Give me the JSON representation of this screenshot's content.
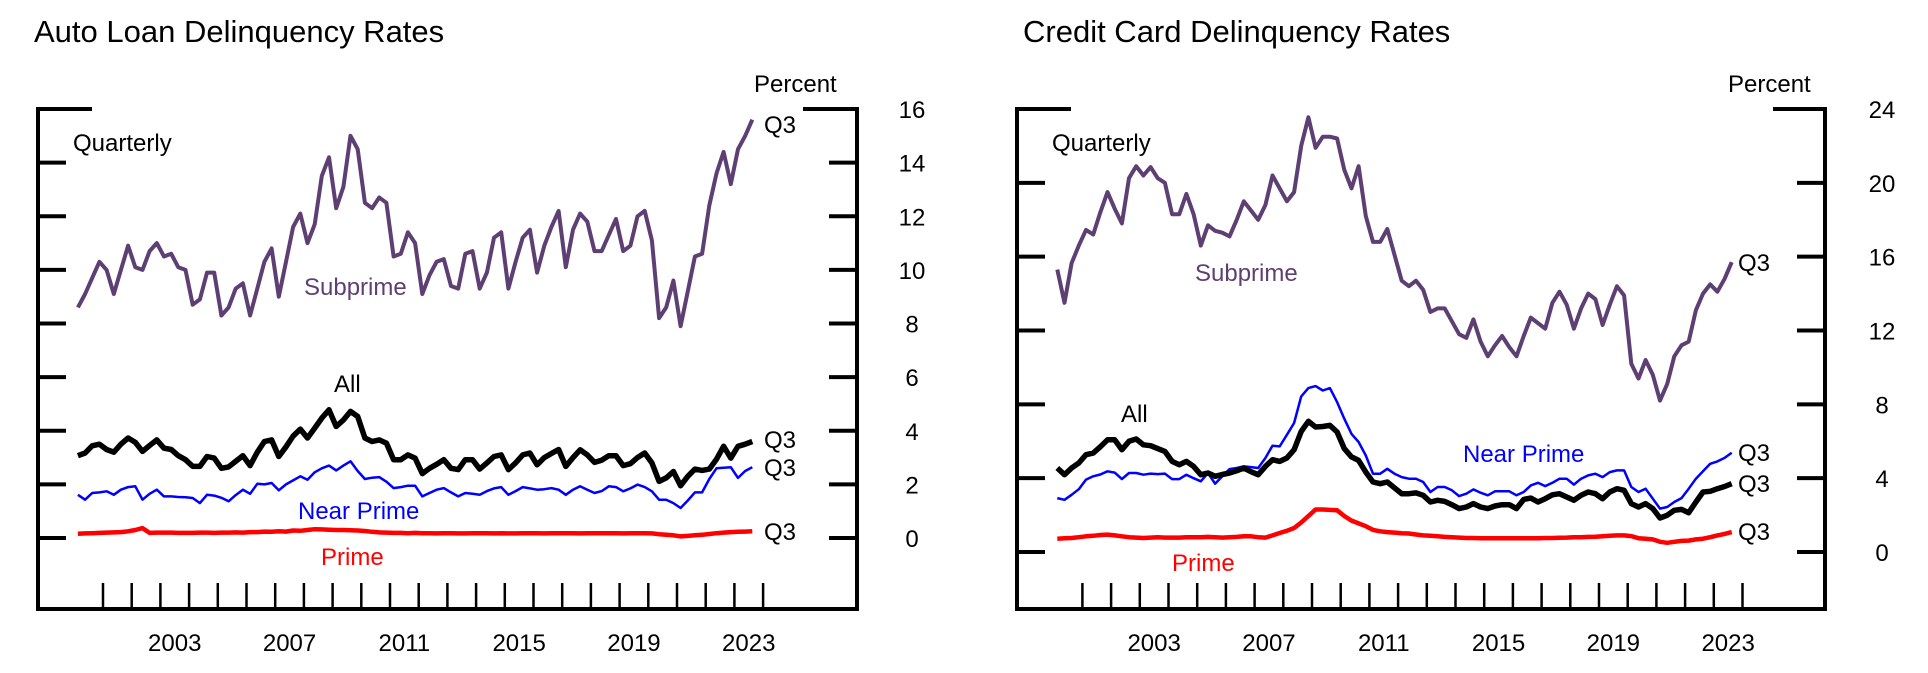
{
  "chart_data": [
    {
      "type": "line",
      "title": "Auto Loan Delinquency Rates",
      "ylabel": "Percent",
      "frequency_note": "Quarterly",
      "ylim": [
        -2.6,
        16
      ],
      "yticks": [
        0,
        2,
        4,
        6,
        8,
        10,
        12,
        14,
        16
      ],
      "xlim": [
        2000,
        2024
      ],
      "xtick_labels": [
        "2003",
        "2007",
        "2011",
        "2015",
        "2019",
        "2023"
      ],
      "start_quarter": "2000Q1",
      "series": [
        {
          "name": "Subprime",
          "color": "#5e3f73",
          "end_label": "Q3",
          "values": [
            8.6,
            9.1,
            9.7,
            10.3,
            10.0,
            9.1,
            10.0,
            10.9,
            10.1,
            10.0,
            10.7,
            11.0,
            10.5,
            10.6,
            10.1,
            10.0,
            8.7,
            8.9,
            9.9,
            9.9,
            8.3,
            8.6,
            9.3,
            9.5,
            8.3,
            9.3,
            10.3,
            10.8,
            9.0,
            10.3,
            11.6,
            12.1,
            11.0,
            11.7,
            13.5,
            14.2,
            12.3,
            13.1,
            15.0,
            14.5,
            12.5,
            12.3,
            12.7,
            12.5,
            10.5,
            10.6,
            11.4,
            11.0,
            9.1,
            9.8,
            10.3,
            10.4,
            9.4,
            9.3,
            10.6,
            10.7,
            9.3,
            9.9,
            11.2,
            11.4,
            9.3,
            10.3,
            11.2,
            11.5,
            9.9,
            10.9,
            11.6,
            12.2,
            10.1,
            11.5,
            12.1,
            11.8,
            10.7,
            10.7,
            11.3,
            11.9,
            10.7,
            10.9,
            12.0,
            12.2,
            11.1,
            8.2,
            8.6,
            9.6,
            7.9,
            9.2,
            10.5,
            10.6,
            12.4,
            13.6,
            14.4,
            13.2,
            14.5,
            15.0,
            15.6
          ]
        },
        {
          "name": "All",
          "color": "#000000",
          "end_label": "Q3",
          "values": [
            3.07,
            3.17,
            3.44,
            3.5,
            3.3,
            3.2,
            3.5,
            3.73,
            3.57,
            3.23,
            3.45,
            3.66,
            3.35,
            3.3,
            3.07,
            2.92,
            2.67,
            2.67,
            3.04,
            2.98,
            2.6,
            2.65,
            2.86,
            3.07,
            2.7,
            3.2,
            3.6,
            3.66,
            3.04,
            3.4,
            3.8,
            4.06,
            3.73,
            4.1,
            4.47,
            4.78,
            4.16,
            4.4,
            4.72,
            4.53,
            3.73,
            3.6,
            3.66,
            3.54,
            2.92,
            2.92,
            3.1,
            2.98,
            2.4,
            2.6,
            2.75,
            2.92,
            2.6,
            2.55,
            2.92,
            2.92,
            2.57,
            2.8,
            3.04,
            3.1,
            2.55,
            2.8,
            3.1,
            3.17,
            2.73,
            3.0,
            3.15,
            3.3,
            2.67,
            3.0,
            3.29,
            3.1,
            2.82,
            2.9,
            3.07,
            3.07,
            2.7,
            2.77,
            3.0,
            3.17,
            2.8,
            2.11,
            2.24,
            2.48,
            1.95,
            2.3,
            2.57,
            2.52,
            2.57,
            2.94,
            3.42,
            2.98,
            3.42,
            3.5,
            3.6
          ]
        },
        {
          "name": "Near Prime",
          "color": "#0000ff",
          "end_label": "Q3",
          "values": [
            1.61,
            1.43,
            1.68,
            1.7,
            1.74,
            1.61,
            1.8,
            1.9,
            1.93,
            1.43,
            1.65,
            1.8,
            1.55,
            1.55,
            1.53,
            1.52,
            1.49,
            1.3,
            1.61,
            1.58,
            1.5,
            1.37,
            1.6,
            1.8,
            1.65,
            2.02,
            2.0,
            2.05,
            1.78,
            2.0,
            2.15,
            2.3,
            2.17,
            2.45,
            2.6,
            2.7,
            2.52,
            2.7,
            2.86,
            2.5,
            2.2,
            2.25,
            2.27,
            2.1,
            1.86,
            1.9,
            1.95,
            1.95,
            1.55,
            1.68,
            1.8,
            1.86,
            1.7,
            1.55,
            1.68,
            1.65,
            1.61,
            1.75,
            1.85,
            1.9,
            1.61,
            1.75,
            1.9,
            1.85,
            1.8,
            1.82,
            1.86,
            1.8,
            1.61,
            1.8,
            1.93,
            1.8,
            1.68,
            1.75,
            1.93,
            1.9,
            1.74,
            1.85,
            1.99,
            1.9,
            1.74,
            1.43,
            1.43,
            1.3,
            1.12,
            1.4,
            1.7,
            1.7,
            2.2,
            2.6,
            2.62,
            2.64,
            2.24,
            2.5,
            2.64
          ]
        },
        {
          "name": "Prime",
          "color": "#ff0000",
          "end_label": "Q3",
          "values": [
            0.16,
            0.17,
            0.18,
            0.19,
            0.2,
            0.21,
            0.22,
            0.25,
            0.3,
            0.37,
            0.19,
            0.2,
            0.2,
            0.2,
            0.19,
            0.19,
            0.19,
            0.2,
            0.2,
            0.19,
            0.2,
            0.2,
            0.21,
            0.2,
            0.22,
            0.22,
            0.24,
            0.23,
            0.25,
            0.24,
            0.28,
            0.27,
            0.3,
            0.33,
            0.32,
            0.31,
            0.3,
            0.3,
            0.29,
            0.28,
            0.26,
            0.23,
            0.21,
            0.2,
            0.19,
            0.19,
            0.18,
            0.19,
            0.18,
            0.18,
            0.17,
            0.18,
            0.18,
            0.17,
            0.17,
            0.18,
            0.18,
            0.18,
            0.17,
            0.18,
            0.17,
            0.17,
            0.18,
            0.18,
            0.18,
            0.17,
            0.18,
            0.18,
            0.18,
            0.18,
            0.17,
            0.18,
            0.18,
            0.18,
            0.18,
            0.18,
            0.17,
            0.18,
            0.18,
            0.18,
            0.17,
            0.14,
            0.12,
            0.1,
            0.06,
            0.08,
            0.1,
            0.12,
            0.15,
            0.18,
            0.2,
            0.22,
            0.23,
            0.24,
            0.25
          ]
        }
      ]
    },
    {
      "type": "line",
      "title": "Credit Card Delinquency Rates",
      "ylabel": "Percent",
      "frequency_note": "Quarterly",
      "ylim": [
        -3.1,
        24
      ],
      "yticks": [
        0,
        4,
        8,
        12,
        16,
        20,
        24
      ],
      "xlim": [
        2000,
        2024
      ],
      "xtick_labels": [
        "2003",
        "2007",
        "2011",
        "2015",
        "2019",
        "2023"
      ],
      "start_quarter": "2000Q1",
      "series": [
        {
          "name": "Subprime",
          "color": "#5e3f73",
          "end_label": "Q3",
          "values": [
            15.3,
            13.5,
            15.65,
            16.6,
            17.45,
            17.2,
            18.4,
            19.5,
            18.6,
            17.8,
            20.25,
            20.9,
            20.4,
            20.85,
            20.25,
            20.0,
            18.3,
            18.3,
            19.4,
            18.3,
            16.6,
            17.7,
            17.4,
            17.3,
            17.1,
            18.0,
            19.0,
            18.5,
            18.0,
            18.8,
            20.4,
            19.7,
            19.0,
            19.5,
            22.0,
            23.55,
            21.9,
            22.5,
            22.5,
            22.4,
            20.7,
            19.7,
            20.9,
            18.2,
            16.8,
            16.8,
            17.5,
            16.1,
            14.7,
            14.4,
            14.7,
            14.2,
            13.0,
            13.2,
            13.2,
            12.5,
            11.8,
            11.6,
            12.6,
            11.4,
            10.6,
            11.2,
            11.7,
            11.1,
            10.6,
            11.7,
            12.7,
            12.4,
            12.1,
            13.5,
            14.1,
            13.4,
            12.1,
            13.2,
            14.0,
            13.7,
            12.3,
            13.4,
            14.4,
            13.9,
            10.2,
            9.4,
            10.4,
            9.6,
            8.2,
            9.1,
            10.6,
            11.2,
            11.4,
            13.1,
            14.0,
            14.5,
            14.1,
            14.8,
            15.7
          ]
        },
        {
          "name": "All",
          "color": "#000000",
          "end_label": "Q3",
          "values": [
            4.55,
            4.19,
            4.55,
            4.82,
            5.27,
            5.36,
            5.7,
            6.08,
            6.08,
            5.54,
            6.0,
            6.12,
            5.81,
            5.76,
            5.6,
            5.45,
            4.91,
            4.73,
            4.91,
            4.64,
            4.19,
            4.28,
            4.1,
            4.2,
            4.28,
            4.4,
            4.55,
            4.35,
            4.19,
            4.64,
            5.0,
            4.91,
            5.09,
            5.54,
            6.53,
            7.08,
            6.77,
            6.8,
            6.86,
            6.5,
            5.6,
            5.15,
            4.96,
            4.33,
            3.79,
            3.7,
            3.79,
            3.47,
            3.16,
            3.16,
            3.2,
            3.07,
            2.71,
            2.8,
            2.74,
            2.56,
            2.35,
            2.44,
            2.62,
            2.44,
            2.35,
            2.49,
            2.56,
            2.56,
            2.35,
            2.85,
            2.92,
            2.71,
            2.89,
            3.1,
            3.16,
            2.98,
            2.8,
            3.07,
            3.25,
            3.16,
            2.89,
            3.25,
            3.43,
            3.34,
            2.62,
            2.44,
            2.62,
            2.35,
            1.84,
            1.99,
            2.26,
            2.31,
            2.13,
            2.71,
            3.25,
            3.29,
            3.43,
            3.55,
            3.7
          ]
        },
        {
          "name": "Near Prime",
          "color": "#0000ff",
          "end_label": "Q3",
          "values": [
            2.92,
            2.83,
            3.1,
            3.4,
            3.92,
            4.1,
            4.2,
            4.37,
            4.3,
            3.95,
            4.28,
            4.28,
            4.19,
            4.25,
            4.22,
            4.25,
            3.95,
            3.95,
            4.19,
            4.0,
            3.83,
            4.28,
            3.7,
            4.1,
            4.49,
            4.55,
            4.64,
            4.6,
            4.55,
            5.09,
            5.76,
            5.72,
            6.35,
            6.99,
            8.43,
            8.88,
            8.99,
            8.75,
            8.88,
            8.12,
            7.22,
            6.4,
            5.96,
            5.23,
            4.24,
            4.24,
            4.51,
            4.24,
            4.06,
            3.97,
            3.97,
            3.79,
            3.25,
            3.52,
            3.52,
            3.34,
            3.03,
            3.16,
            3.39,
            3.21,
            3.07,
            3.29,
            3.29,
            3.29,
            3.07,
            3.25,
            3.61,
            3.75,
            3.57,
            3.75,
            3.97,
            3.97,
            3.65,
            3.97,
            4.15,
            4.24,
            4.06,
            4.33,
            4.42,
            4.42,
            3.52,
            3.25,
            3.43,
            2.89,
            2.35,
            2.44,
            2.71,
            2.92,
            3.43,
            3.97,
            4.37,
            4.78,
            4.91,
            5.1,
            5.38
          ]
        },
        {
          "name": "Prime",
          "color": "#ff0000",
          "end_label": "Q3",
          "values": [
            0.72,
            0.74,
            0.76,
            0.8,
            0.85,
            0.88,
            0.92,
            0.94,
            0.9,
            0.85,
            0.8,
            0.78,
            0.76,
            0.78,
            0.8,
            0.78,
            0.78,
            0.78,
            0.8,
            0.8,
            0.8,
            0.82,
            0.8,
            0.78,
            0.8,
            0.82,
            0.85,
            0.85,
            0.8,
            0.78,
            0.9,
            1.03,
            1.15,
            1.3,
            1.6,
            1.95,
            2.3,
            2.3,
            2.28,
            2.26,
            1.95,
            1.7,
            1.55,
            1.4,
            1.2,
            1.12,
            1.08,
            1.05,
            1.02,
            1.0,
            0.95,
            0.9,
            0.88,
            0.85,
            0.82,
            0.8,
            0.78,
            0.76,
            0.76,
            0.75,
            0.75,
            0.74,
            0.74,
            0.75,
            0.74,
            0.74,
            0.75,
            0.75,
            0.76,
            0.76,
            0.77,
            0.78,
            0.8,
            0.8,
            0.82,
            0.83,
            0.85,
            0.88,
            0.9,
            0.9,
            0.86,
            0.75,
            0.72,
            0.68,
            0.55,
            0.5,
            0.55,
            0.6,
            0.62,
            0.68,
            0.72,
            0.8,
            0.9,
            0.98,
            1.08
          ]
        }
      ]
    }
  ]
}
